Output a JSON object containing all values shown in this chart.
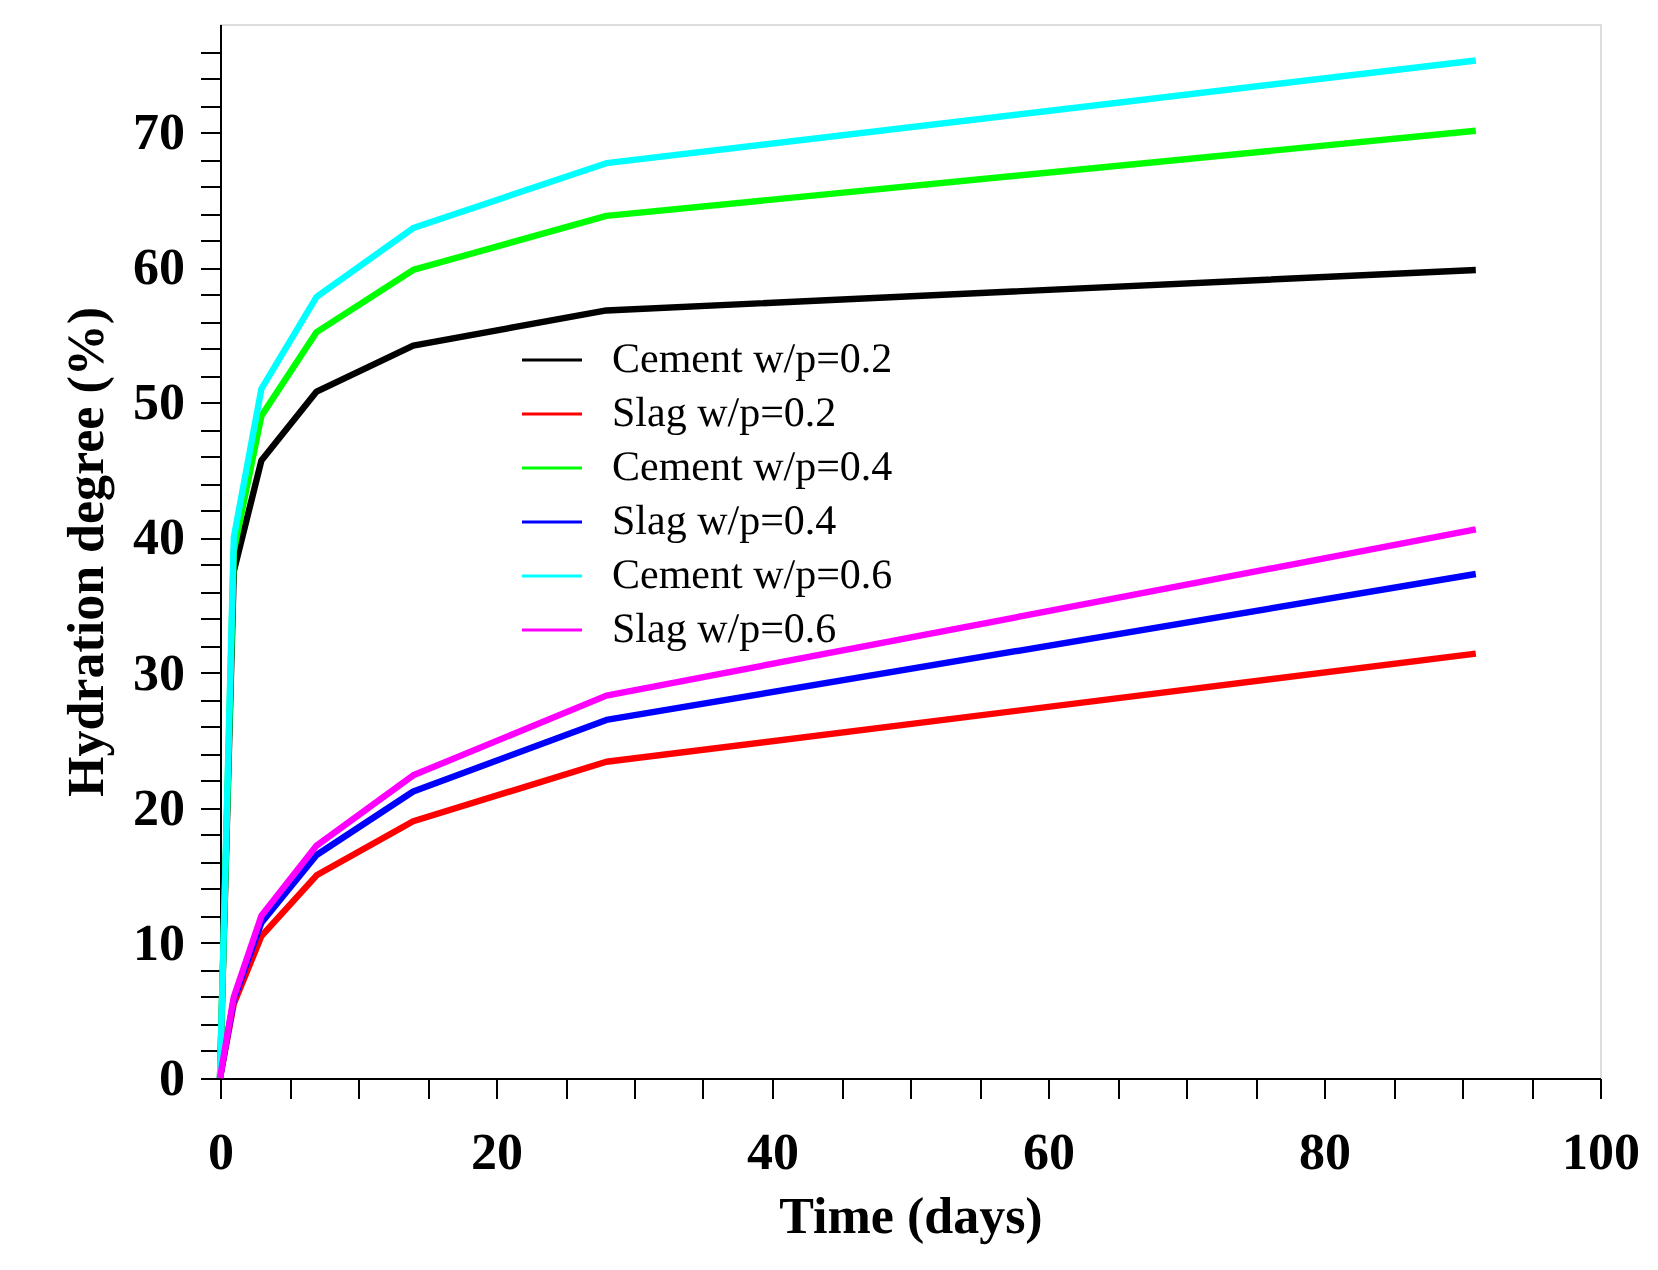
{
  "chart_data": {
    "type": "line",
    "xlabel": "Time (days)",
    "ylabel": "Hydration degree (%)",
    "xlim": [
      0,
      100
    ],
    "ylim": [
      0,
      78
    ],
    "xticks": [
      0,
      {
        "value": 5,
        "label": null
      },
      {
        "value": 10,
        "label": null
      },
      {
        "value": 15,
        "label": null
      },
      20,
      {
        "value": 25,
        "label": null
      },
      {
        "value": 30,
        "label": null
      },
      {
        "value": 35,
        "label": null
      },
      40,
      {
        "value": 45,
        "label": null
      },
      {
        "value": 50,
        "label": null
      },
      {
        "value": 55,
        "label": null
      },
      60,
      {
        "value": 65,
        "label": null
      },
      {
        "value": 70,
        "label": null
      },
      {
        "value": 75,
        "label": null
      },
      80,
      {
        "value": 85,
        "label": null
      },
      {
        "value": 90,
        "label": null
      },
      {
        "value": 95,
        "label": null
      },
      100
    ],
    "yticks": [
      0,
      {
        "value": 2,
        "label": null
      },
      {
        "value": 4,
        "label": null
      },
      {
        "value": 6,
        "label": null
      },
      {
        "value": 8,
        "label": null
      },
      10,
      {
        "value": 12,
        "label": null
      },
      {
        "value": 14,
        "label": null
      },
      {
        "value": 16,
        "label": null
      },
      {
        "value": 18,
        "label": null
      },
      20,
      {
        "value": 22,
        "label": null
      },
      {
        "value": 24,
        "label": null
      },
      {
        "value": 26,
        "label": null
      },
      {
        "value": 28,
        "label": null
      },
      30,
      {
        "value": 32,
        "label": null
      },
      {
        "value": 34,
        "label": null
      },
      {
        "value": 36,
        "label": null
      },
      {
        "value": 38,
        "label": null
      },
      40,
      {
        "value": 42,
        "label": null
      },
      {
        "value": 44,
        "label": null
      },
      {
        "value": 46,
        "label": null
      },
      {
        "value": 48,
        "label": null
      },
      50,
      {
        "value": 52,
        "label": null
      },
      {
        "value": 54,
        "label": null
      },
      {
        "value": 56,
        "label": null
      },
      {
        "value": 58,
        "label": null
      },
      60,
      {
        "value": 62,
        "label": null
      },
      {
        "value": 64,
        "label": null
      },
      {
        "value": 66,
        "label": null
      },
      {
        "value": 68,
        "label": null
      },
      70,
      {
        "value": 72,
        "label": null
      },
      {
        "value": 74,
        "label": null
      },
      {
        "value": 76,
        "label": null
      }
    ],
    "x": [
      0,
      1,
      3,
      7,
      14,
      28,
      91
    ],
    "grid": false,
    "legend": "center",
    "marker": "none",
    "line_style": "solid",
    "series": [
      {
        "name": "Cement w/p=0.2",
        "color": "#000000",
        "values": [
          0,
          37.5,
          45.7,
          50.8,
          54.2,
          56.8,
          59.8
        ]
      },
      {
        "name": "Slag w/p=0.2",
        "color": "#ff0000",
        "values": [
          0,
          5.5,
          10.5,
          15,
          19,
          23.4,
          31.4
        ]
      },
      {
        "name": "Cement w/p=0.4",
        "color": "#00ff00",
        "values": [
          0,
          39,
          49,
          55.2,
          59.8,
          63.8,
          70.1
        ]
      },
      {
        "name": "Slag w/p=0.4",
        "color": "#0000ff",
        "values": [
          0,
          5.8,
          11.5,
          16.5,
          21.2,
          26.5,
          37.3
        ]
      },
      {
        "name": "Cement w/p=0.6",
        "color": "#00ffff",
        "values": [
          0,
          40,
          51,
          57.8,
          62.9,
          67.7,
          75.3
        ]
      },
      {
        "name": "Slag w/p=0.6",
        "color": "#ff00ff",
        "values": [
          0,
          6,
          12,
          17.2,
          22.4,
          28.3,
          40.6
        ]
      }
    ]
  }
}
